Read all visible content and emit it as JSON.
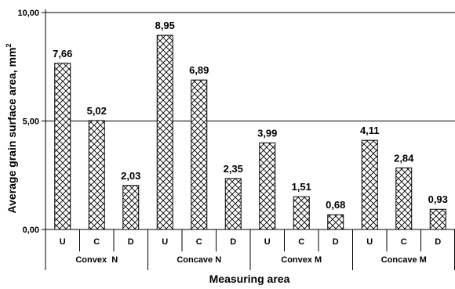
{
  "chart_data": {
    "type": "bar",
    "xlabel": "Measuring area",
    "ylabel": "Average grain surface area, mm",
    "ylabel_sup": "2",
    "ylim": [
      0,
      10
    ],
    "yticks": [
      "0,00",
      "5,00",
      "10,00"
    ],
    "ytick_values": [
      0,
      5,
      10
    ],
    "grid": "horizontal gridlines at 5 and 10",
    "bar_pattern": "crosshatch",
    "groups": [
      {
        "name": "Convex  N",
        "categories": [
          "U",
          "C",
          "D"
        ],
        "values": [
          7.66,
          5.02,
          2.03
        ],
        "labels": [
          "7,66",
          "5,02",
          "2,03"
        ]
      },
      {
        "name": "Concave N",
        "categories": [
          "U",
          "C",
          "D"
        ],
        "values": [
          8.95,
          6.89,
          2.35
        ],
        "labels": [
          "8,95",
          "6,89",
          "2,35"
        ]
      },
      {
        "name": "Convex M",
        "categories": [
          "U",
          "C",
          "D"
        ],
        "values": [
          3.99,
          1.51,
          0.68
        ],
        "labels": [
          "3,99",
          "1,51",
          "0,68"
        ]
      },
      {
        "name": "Concave M",
        "categories": [
          "U",
          "C",
          "D"
        ],
        "values": [
          4.11,
          2.84,
          0.93
        ],
        "labels": [
          "4,11",
          "2,84",
          "0,93"
        ]
      }
    ]
  }
}
